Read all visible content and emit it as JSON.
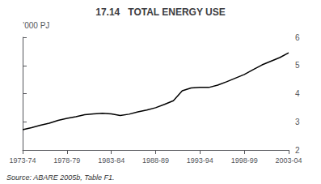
{
  "chart_data": {
    "type": "line",
    "title": "17.14   TOTAL ENERGY USE",
    "ylabel": "’000 PJ",
    "annotation": "Source: ABARE 2005b, Table F1.",
    "x": [
      0,
      1,
      2,
      3,
      4,
      5,
      6,
      7,
      8,
      9,
      10,
      11,
      12,
      13,
      14,
      15,
      16,
      17,
      18,
      19,
      20,
      21,
      22,
      23,
      24,
      25,
      26,
      27,
      28,
      29,
      30
    ],
    "values": [
      2.72,
      2.79,
      2.88,
      2.95,
      3.05,
      3.12,
      3.18,
      3.25,
      3.28,
      3.3,
      3.28,
      3.22,
      3.27,
      3.35,
      3.42,
      3.5,
      3.62,
      3.75,
      4.1,
      4.2,
      4.22,
      4.22,
      4.3,
      4.42,
      4.55,
      4.68,
      4.85,
      5.02,
      5.15,
      5.28,
      5.45
    ],
    "color": "#000000",
    "xlim": [
      0,
      30
    ],
    "xticks": [
      {
        "value": 0,
        "label": "1973-74"
      },
      {
        "value": 5,
        "label": "1978-79"
      },
      {
        "value": 10,
        "label": "1983-84"
      },
      {
        "value": 15,
        "label": "1988-89"
      },
      {
        "value": 20,
        "label": "1993-94"
      },
      {
        "value": 25,
        "label": "1998-99"
      },
      {
        "value": 30,
        "label": "2003-04"
      }
    ],
    "ylim": [
      2,
      6
    ],
    "yticks": [
      2,
      3,
      4,
      5,
      6
    ],
    "grid": false
  }
}
